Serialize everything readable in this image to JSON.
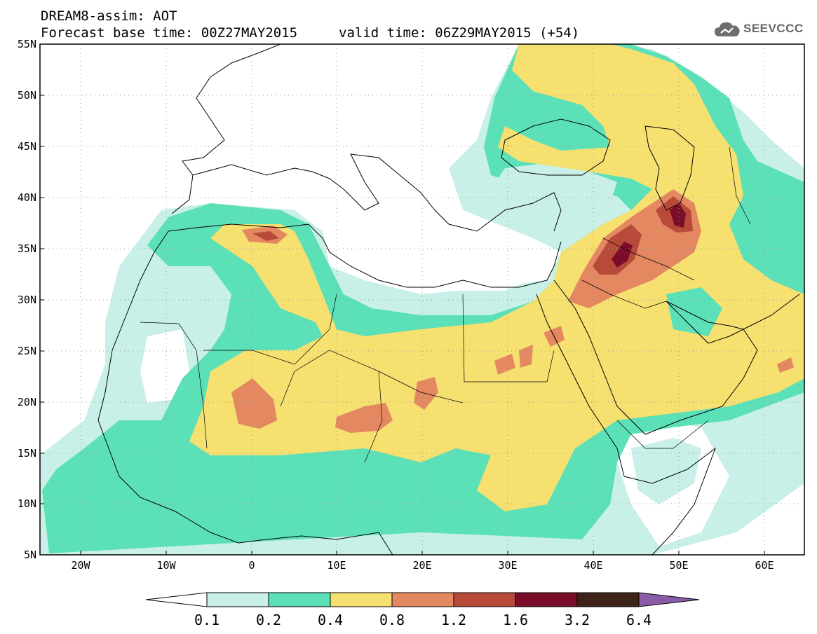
{
  "header": {
    "title": "DREAM8-assim: AOT",
    "base_time": "Forecast base time: 00Z27MAY2015",
    "valid_time": "valid time: 06Z29MAY2015 (+54)",
    "logo_text": "SEEVCCC",
    "logo_icon": "cloud-icon"
  },
  "axes": {
    "lat_labels": [
      "55N",
      "50N",
      "45N",
      "40N",
      "35N",
      "30N",
      "25N",
      "20N",
      "15N",
      "10N",
      "5N"
    ],
    "lon_labels": [
      "20W",
      "10W",
      "0",
      "10E",
      "20E",
      "30E",
      "40E",
      "50E",
      "60E"
    ]
  },
  "colorbar": {
    "labels": [
      "0.1",
      "0.2",
      "0.4",
      "0.8",
      "1.2",
      "1.6",
      "3.2",
      "6.4"
    ],
    "colors": [
      "#ffffff",
      "#c8f0e8",
      "#5ce0b8",
      "#f5e070",
      "#e48862",
      "#b84a3a",
      "#7a0e2a",
      "#3e2418",
      "#8a5ca8"
    ]
  },
  "palette": {
    "aot_01": "#c8f0e8",
    "aot_02": "#5ce0b8",
    "aot_04": "#f5e070",
    "aot_08": "#e48862",
    "aot_12": "#b84a3a",
    "aot_16": "#7a0e2a"
  }
}
